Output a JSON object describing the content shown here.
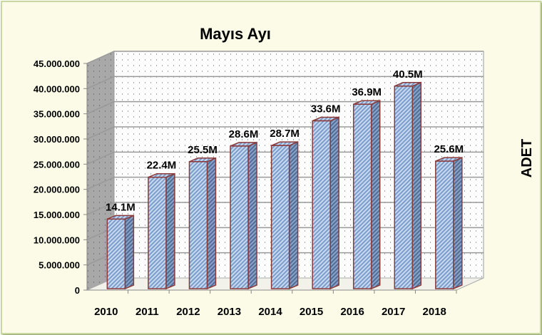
{
  "chart_data": {
    "type": "bar",
    "title": "Mayıs Ayı",
    "xlabel": "",
    "ylabel": "ADET",
    "categories": [
      "2010",
      "2011",
      "2012",
      "2013",
      "2014",
      "2015",
      "2016",
      "2017",
      "2018"
    ],
    "values": [
      14100000,
      22400000,
      25500000,
      28600000,
      28700000,
      33600000,
      36900000,
      40500000,
      25600000
    ],
    "data_labels": [
      "14.1M",
      "22.4M",
      "25.5M",
      "28.6M",
      "28.7M",
      "33.6M",
      "36.9M",
      "40.5M",
      "25.6M"
    ],
    "ylim": [
      0,
      45000000
    ],
    "yticks": [
      "0",
      "5.000.000",
      "10.000.000",
      "15.000.000",
      "20.000.000",
      "25.000.000",
      "30.000.000",
      "35.000.000",
      "40.000.000",
      "45.000.000"
    ],
    "grid": true,
    "legend": "none",
    "colors": {
      "bar_fill": "#a9c4e8",
      "bar_stroke": "#8b3a3a",
      "bar_side": "#6f8fb8",
      "wall": "#f4f4f4",
      "side_wall": "#a6a6a6"
    }
  }
}
